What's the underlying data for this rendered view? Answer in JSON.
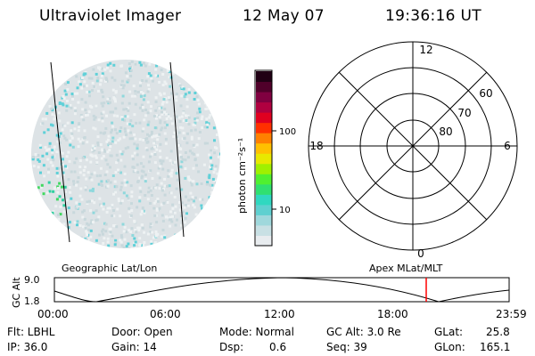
{
  "header": {
    "instrument": "Ultraviolet Imager",
    "date": "12 May 07",
    "time": "19:36:16 UT"
  },
  "colorbar": {
    "unit_label": "photon cm⁻²s⁻¹",
    "tick_labels": [
      "100",
      "10"
    ],
    "colors": [
      "#e8ecef",
      "#c8e0e4",
      "#9fd8dc",
      "#5fd0d0",
      "#30d8c0",
      "#30e070",
      "#50f030",
      "#a0f000",
      "#e8e800",
      "#ffc000",
      "#ff8000",
      "#ff3000",
      "#e00020",
      "#b00040",
      "#800040",
      "#50002a",
      "#200014"
    ]
  },
  "polar": {
    "mlt_labels": {
      "top": "12",
      "left": "18",
      "right": "6",
      "bottom": "0"
    },
    "lat_labels": [
      "60",
      "70",
      "80"
    ]
  },
  "panels": {
    "left_caption": "Geographic Lat/Lon",
    "right_caption": "Apex MLat/MLT"
  },
  "altitude_plot": {
    "axis_title": "GC Alt",
    "y_ticks": [
      "9.0",
      "1.8"
    ],
    "x_ticks": [
      "00:00",
      "06:00",
      "12:00",
      "18:00",
      "23:59"
    ],
    "current_time_marker_color": "#ff0000"
  },
  "status": {
    "flt": "Flt: LBHL",
    "ip": "IP: 36.0",
    "door": "Door: Open",
    "gain": "Gain: 14",
    "mode": "Mode: Normal",
    "dsp": "Dsp:",
    "dsp_val": "0.6",
    "gcalt": "GC Alt: 3.0 Re",
    "seq": "Seq: 39",
    "glat": "GLat:",
    "glat_val": "25.8",
    "glon": "GLon:",
    "glon_val": "165.1"
  }
}
